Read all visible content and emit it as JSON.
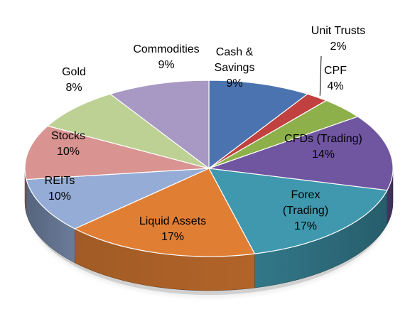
{
  "chart_data": {
    "type": "pie",
    "style": "3d",
    "title": "",
    "legend": "none",
    "slices": [
      {
        "name": "Cash & Savings",
        "value": 9,
        "label_lines": [
          "Cash &",
          "Savings",
          "9%"
        ],
        "color": "#4a73b0"
      },
      {
        "name": "Unit Trusts",
        "value": 2,
        "label_lines": [
          "Unit Trusts",
          "2%"
        ],
        "color": "#c0413f"
      },
      {
        "name": "CPF",
        "value": 4,
        "label_lines": [
          "CPF",
          "4%"
        ],
        "color": "#8db04a"
      },
      {
        "name": "CFDs (Trading)",
        "value": 14,
        "label_lines": [
          "CFDs (Trading)",
          "14%"
        ],
        "color": "#7055a0"
      },
      {
        "name": "Forex (Trading)",
        "value": 17,
        "label_lines": [
          "Forex",
          "(Trading)",
          "17%"
        ],
        "color": "#3f98ae"
      },
      {
        "name": "Liquid Assets",
        "value": 17,
        "label_lines": [
          "Liquid Assets",
          "17%"
        ],
        "color": "#e07e34"
      },
      {
        "name": "REITs",
        "value": 10,
        "label_lines": [
          "REITs",
          "10%"
        ],
        "color": "#94acd6"
      },
      {
        "name": "Stocks",
        "value": 10,
        "label_lines": [
          "Stocks",
          "10%"
        ],
        "color": "#d99391"
      },
      {
        "name": "Gold",
        "value": 8,
        "label_lines": [
          "Gold",
          "8%"
        ],
        "color": "#bcd193"
      },
      {
        "name": "Commodities",
        "value": 9,
        "label_lines": [
          "Commodities",
          "9%"
        ],
        "color": "#a899c4"
      }
    ]
  }
}
